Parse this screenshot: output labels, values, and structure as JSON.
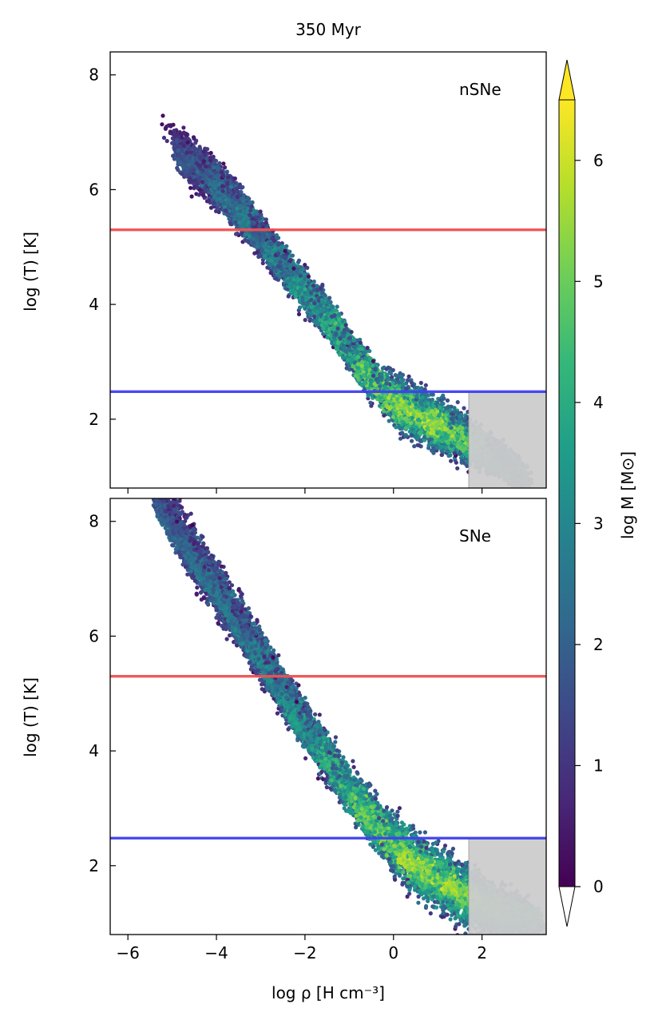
{
  "figure_title": "350 Myr",
  "chart_data": [
    {
      "type": "heatmap",
      "panel_label": "nSNe",
      "title": "",
      "xlabel": "log  ρ [H cm⁻³]",
      "ylabel": "log (T) [K]",
      "xlim": [
        -6.4,
        3.45
      ],
      "ylim": [
        0.8,
        8.4
      ],
      "x_ticks": [
        -6,
        -4,
        -2,
        0,
        2
      ],
      "x_tick_labels": [],
      "y_ticks": [
        2,
        4,
        6,
        8
      ],
      "y_tick_labels": [
        "2",
        "4",
        "6",
        "8"
      ],
      "hlines": [
        {
          "y": 5.3,
          "color": "#f05050"
        },
        {
          "y": 2.48,
          "color": "#4040ee"
        }
      ],
      "shaded_region": {
        "x": [
          1.7,
          3.45
        ],
        "y": [
          0.8,
          2.48
        ],
        "color": "#cccccc"
      },
      "distribution": {
        "description": "2D mass-weighted phase diagram",
        "ridge": [
          {
            "x": -4.8,
            "y": 6.6,
            "w": 1.1,
            "c": 2.0
          },
          {
            "x": -4.0,
            "y": 6.1,
            "w": 1.3,
            "c": 3.0
          },
          {
            "x": -3.4,
            "y": 5.6,
            "w": 1.3,
            "c": 3.2
          },
          {
            "x": -2.8,
            "y": 5.0,
            "w": 1.2,
            "c": 3.4
          },
          {
            "x": -2.2,
            "y": 4.4,
            "w": 1.0,
            "c": 4.0
          },
          {
            "x": -1.5,
            "y": 3.8,
            "w": 1.0,
            "c": 4.6
          },
          {
            "x": -0.8,
            "y": 3.0,
            "w": 1.1,
            "c": 5.2
          },
          {
            "x": 0.0,
            "y": 2.3,
            "w": 1.2,
            "c": 6.0
          },
          {
            "x": 0.8,
            "y": 2.0,
            "w": 1.2,
            "c": 6.3
          },
          {
            "x": 1.6,
            "y": 1.7,
            "w": 1.0,
            "c": 5.8
          },
          {
            "x": 2.4,
            "y": 1.3,
            "w": 0.6,
            "c": 3.8
          },
          {
            "x": 2.9,
            "y": 1.0,
            "w": 0.3,
            "c": 3.0
          }
        ]
      }
    },
    {
      "type": "heatmap",
      "panel_label": "SNe",
      "title": "",
      "xlabel": "log  ρ [H cm⁻³]",
      "ylabel": "log (T) [K]",
      "xlim": [
        -6.4,
        3.45
      ],
      "ylim": [
        0.8,
        8.4
      ],
      "x_ticks": [
        -6,
        -4,
        -2,
        0,
        2
      ],
      "x_tick_labels": [
        "−6",
        "−4",
        "−2",
        "0",
        "2"
      ],
      "y_ticks": [
        2,
        4,
        6,
        8
      ],
      "y_tick_labels": [
        "2",
        "4",
        "6",
        "8"
      ],
      "hlines": [
        {
          "y": 5.3,
          "color": "#f05050"
        },
        {
          "y": 2.48,
          "color": "#4040ee"
        }
      ],
      "shaded_region": {
        "x": [
          1.7,
          3.45
        ],
        "y": [
          0.8,
          2.48
        ],
        "color": "#cccccc"
      },
      "distribution": {
        "description": "2D mass-weighted phase diagram",
        "ridge": [
          {
            "x": -5.2,
            "y": 8.2,
            "w": 2.6,
            "c": 2.4
          },
          {
            "x": -4.5,
            "y": 7.4,
            "w": 2.8,
            "c": 2.8
          },
          {
            "x": -3.8,
            "y": 6.6,
            "w": 2.8,
            "c": 3.1
          },
          {
            "x": -3.0,
            "y": 5.7,
            "w": 2.5,
            "c": 3.4
          },
          {
            "x": -2.3,
            "y": 4.8,
            "w": 2.0,
            "c": 3.9
          },
          {
            "x": -1.6,
            "y": 4.0,
            "w": 1.9,
            "c": 4.6
          },
          {
            "x": -0.8,
            "y": 3.1,
            "w": 1.9,
            "c": 5.3
          },
          {
            "x": 0.2,
            "y": 2.2,
            "w": 1.8,
            "c": 6.1
          },
          {
            "x": 1.2,
            "y": 1.7,
            "w": 1.6,
            "c": 6.2
          },
          {
            "x": 2.2,
            "y": 1.3,
            "w": 1.2,
            "c": 5.2
          },
          {
            "x": 3.2,
            "y": 1.05,
            "w": 0.6,
            "c": 4.4
          }
        ]
      }
    }
  ],
  "colorbar": {
    "label": "log M [M⊙]",
    "range": [
      0,
      6.5
    ],
    "ticks": [
      0,
      1,
      2,
      3,
      4,
      5,
      6
    ],
    "tick_labels": [
      "0",
      "1",
      "2",
      "3",
      "4",
      "5",
      "6"
    ],
    "extend": "both",
    "colormap": "viridis",
    "colormap_stops": [
      "#440154",
      "#482878",
      "#3e4989",
      "#31688e",
      "#26828e",
      "#1f9e89",
      "#35b779",
      "#6ece58",
      "#b5de2b",
      "#fde725"
    ]
  }
}
